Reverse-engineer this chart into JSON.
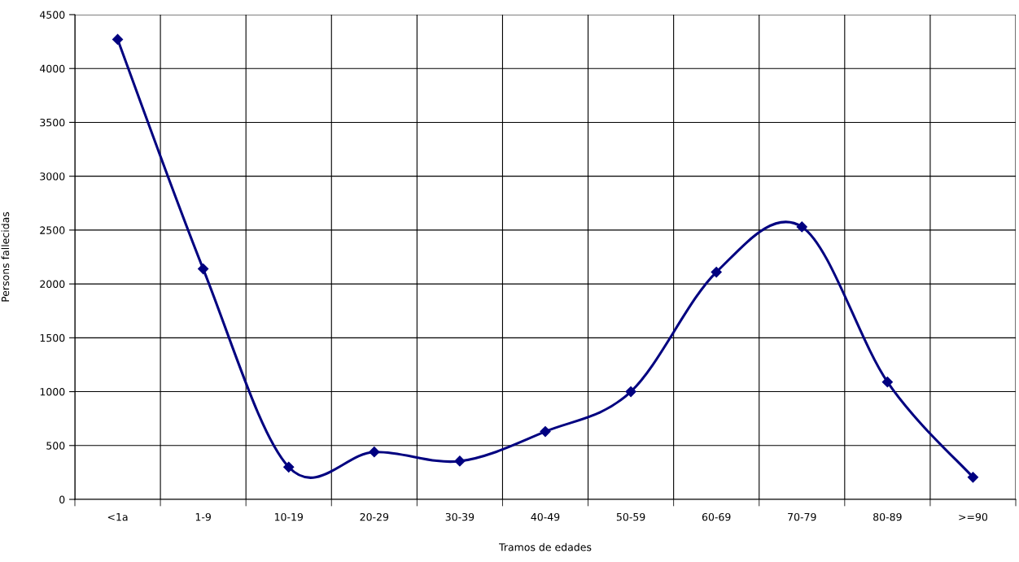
{
  "chart_data": {
    "type": "line",
    "xlabel": "Tramos de edades",
    "ylabel": "Persons fallecidas",
    "categories": [
      "<1a",
      "1-9",
      "10-19",
      "20-29",
      "30-39",
      "40-49",
      "50-59",
      "60-69",
      "70-79",
      "80-89",
      ">=90"
    ],
    "series": [
      {
        "color": "#000080",
        "values": [
          4270,
          2140,
          300,
          440,
          355,
          630,
          1000,
          2110,
          2530,
          1090,
          205
        ]
      }
    ],
    "ylim": [
      0,
      4500
    ],
    "yticks": [
      0,
      500,
      1000,
      1500,
      2000,
      2500,
      3000,
      3500,
      4000,
      4500
    ],
    "grid": true,
    "marker": "diamond",
    "line_style": "solid"
  }
}
